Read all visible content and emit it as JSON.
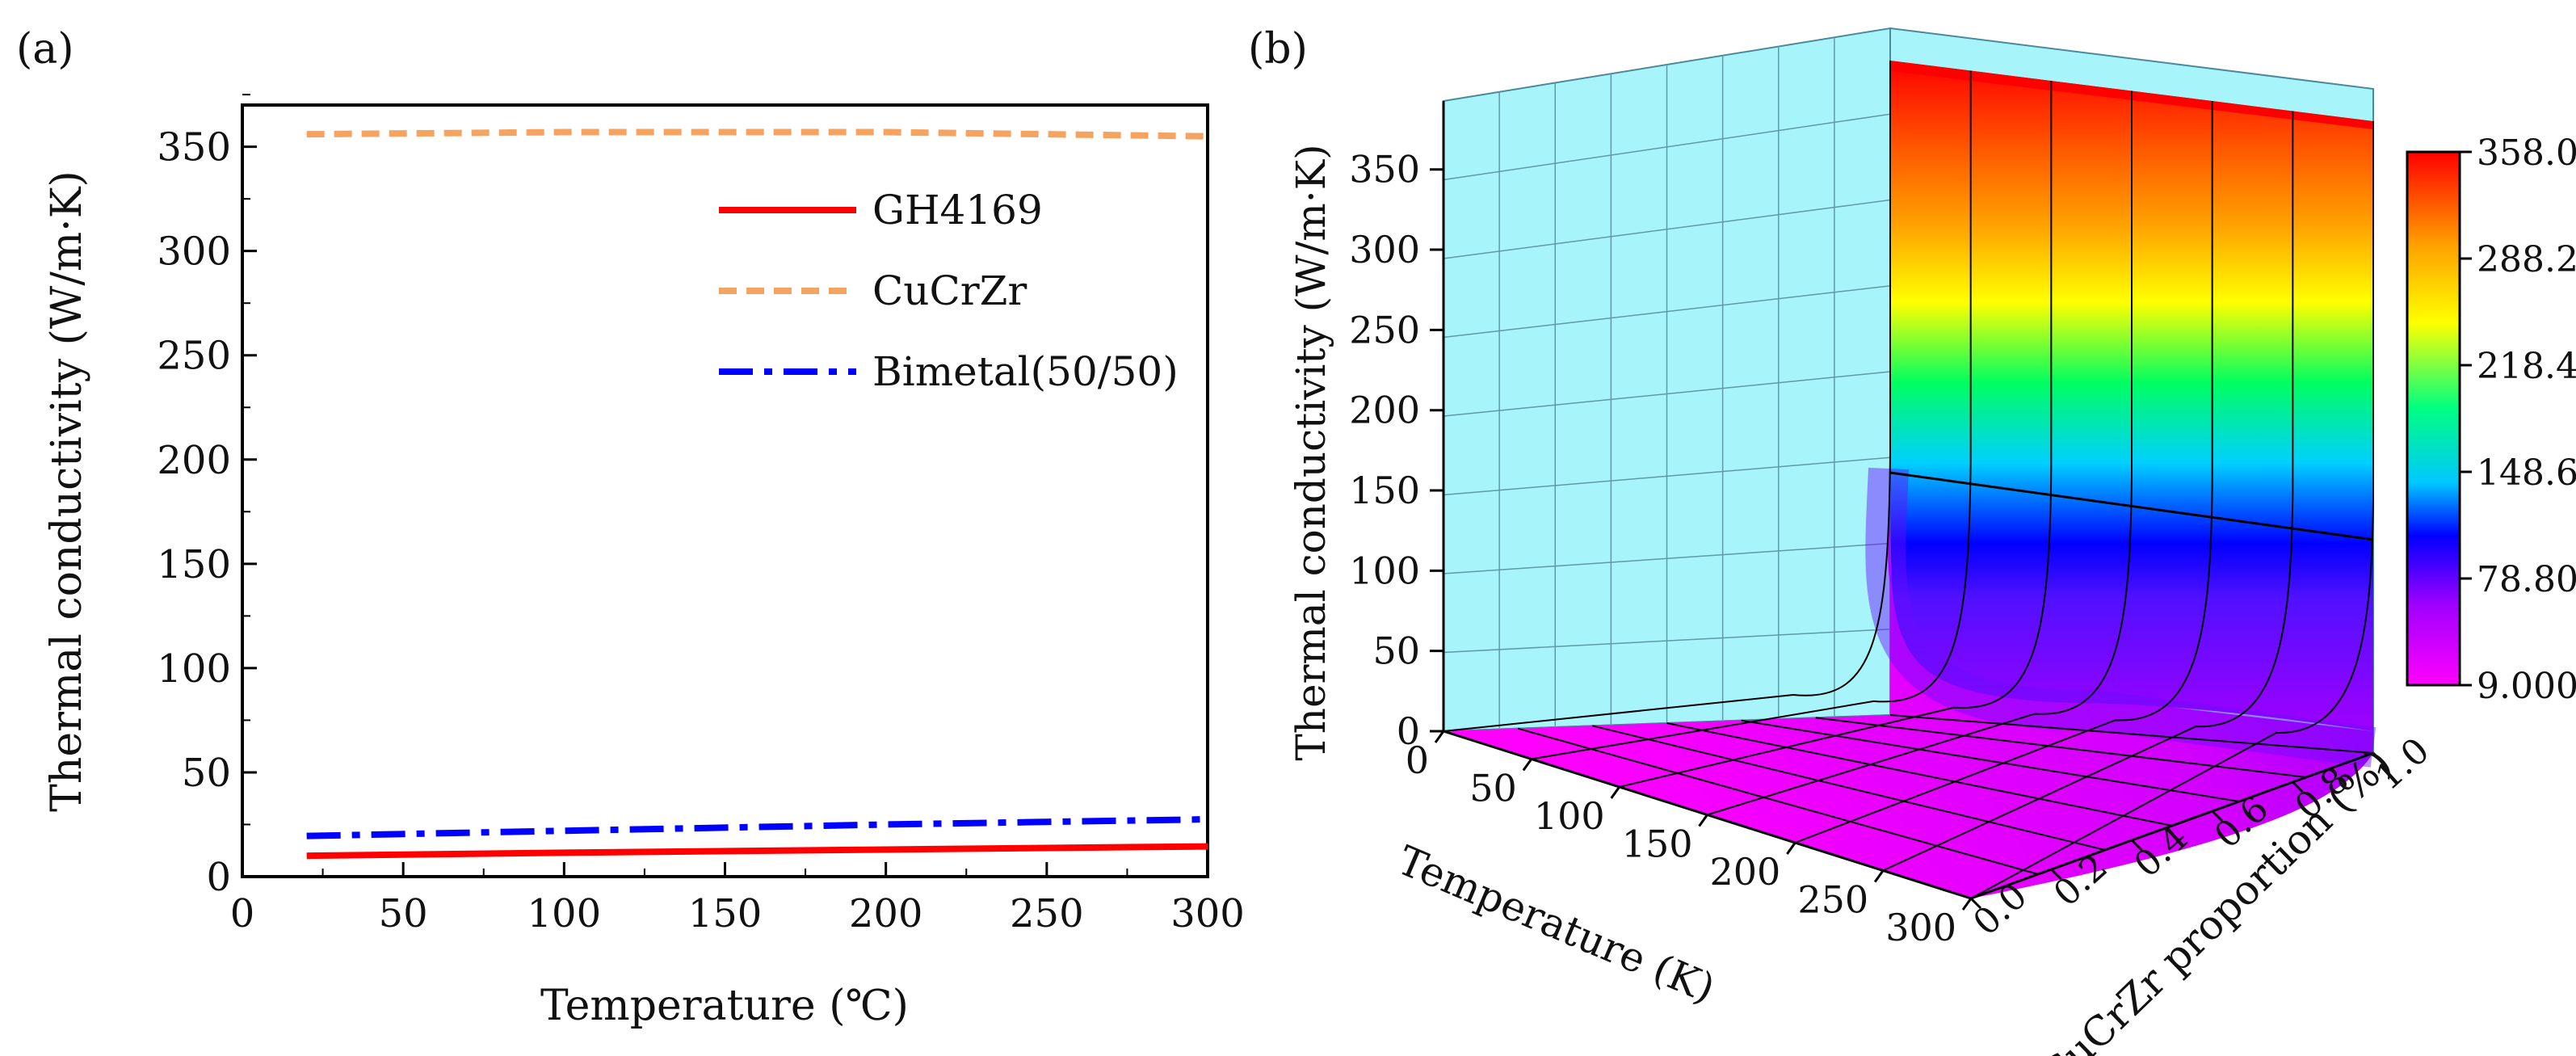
{
  "chart_data": [
    {
      "panel": "(a)",
      "type": "line",
      "title": "",
      "xlabel": "Temperature (℃)",
      "ylabel": "Thermal conductivity (W/m·K)",
      "xlim": [
        0,
        300
      ],
      "ylim": [
        0,
        370
      ],
      "xticks": [
        "0",
        "50",
        "100",
        "150",
        "200",
        "250",
        "300"
      ],
      "yticks": [
        "0",
        "50",
        "100",
        "150",
        "200",
        "250",
        "300",
        "350"
      ],
      "legend_position": "top-right",
      "series": [
        {
          "name": "GH4169",
          "color": "#ff0000",
          "style": "solid",
          "x": [
            20,
            100,
            200,
            300
          ],
          "y": [
            10,
            11.5,
            13,
            14.5
          ]
        },
        {
          "name": "CuCrZr",
          "color": "#f4a460",
          "style": "dash",
          "x": [
            20,
            100,
            200,
            300
          ],
          "y": [
            356,
            357,
            357,
            355
          ]
        },
        {
          "name": "Bimetal(50/50)",
          "color": "#0000ff",
          "style": "dashdot",
          "x": [
            20,
            100,
            200,
            300
          ],
          "y": [
            19.5,
            22,
            25,
            27.5
          ]
        }
      ]
    },
    {
      "panel": "(b)",
      "type": "surface",
      "xlabel": "Temperature (K)",
      "ylabel": "CuCrZr proportion (%)",
      "zlabel": "Thermal conductivity (W/m·K)",
      "xticks": [
        "0",
        "50",
        "100",
        "150",
        "200",
        "250",
        "300"
      ],
      "yticks": [
        "0.0",
        "0.2",
        "0.4",
        "0.6",
        "0.8",
        "1.0"
      ],
      "zticks": [
        "0",
        "50",
        "100",
        "150",
        "200",
        "250",
        "300",
        "350"
      ],
      "zlim": [
        0,
        370
      ],
      "colorbar": {
        "min": 9.0,
        "max": 358.0,
        "labels": [
          "358.0",
          "288.2",
          "218.4",
          "148.6",
          "78.80",
          "9.000"
        ],
        "colors": [
          "#ff0000",
          "#ffa500",
          "#ffff00",
          "#00ff00",
          "#00ffff",
          "#0000ff",
          "#ff00ff"
        ]
      },
      "surface_values_at_proportion": {
        "proportion": [
          0.0,
          0.2,
          0.4,
          0.6,
          0.8,
          0.9,
          1.0
        ],
        "conductivity": [
          9,
          12,
          18,
          30,
          60,
          120,
          358
        ]
      }
    }
  ],
  "panel_labels": {
    "a": "(a)",
    "b": "(b)"
  }
}
